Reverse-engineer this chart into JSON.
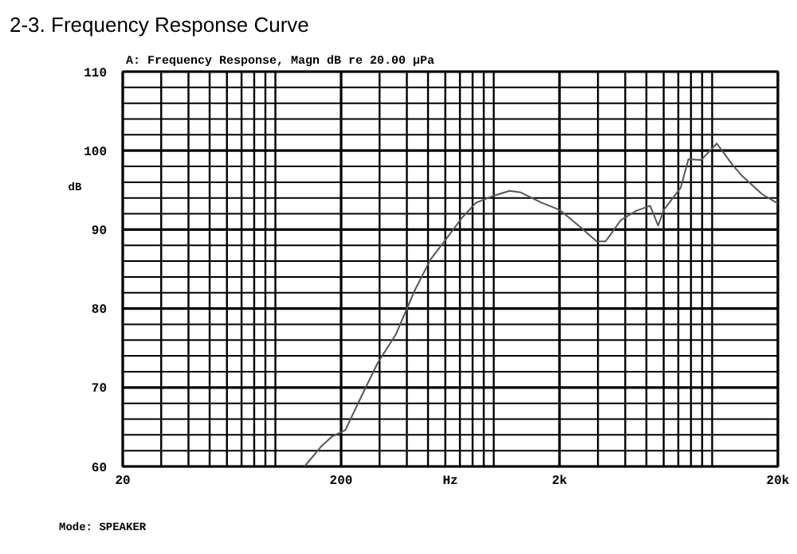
{
  "chart_data": {
    "type": "line",
    "title": "2-3. Frequency Response Curve",
    "subtitle": "A: Frequency Response, Magn dB re 20.00 µPa",
    "xlabel": "Hz",
    "ylabel": "dB",
    "annotations": [
      "Mode: SPEAKER"
    ],
    "log": "x",
    "grid": true,
    "xlim": [
      20,
      20000
    ],
    "ylim": [
      60,
      110
    ],
    "xticks": [
      20,
      {
        "value": 30,
        "label": null
      },
      {
        "value": 40,
        "label": null
      },
      {
        "value": 50,
        "label": null
      },
      {
        "value": 60,
        "label": null
      },
      {
        "value": 70,
        "label": null
      },
      {
        "value": 80,
        "label": null
      },
      {
        "value": 90,
        "label": null
      },
      {
        "value": 100,
        "label": null
      },
      200,
      {
        "value": 300,
        "label": null
      },
      {
        "value": 400,
        "label": null
      },
      {
        "value": 500,
        "label": null
      },
      {
        "value": 600,
        "label": null
      },
      {
        "value": 700,
        "label": null
      },
      {
        "value": 800,
        "label": null
      },
      {
        "value": 900,
        "label": null
      },
      {
        "value": 1000,
        "label": null
      },
      {
        "value": 2000,
        "label": "2k"
      },
      {
        "value": 3000,
        "label": null
      },
      {
        "value": 4000,
        "label": null
      },
      {
        "value": 5000,
        "label": null
      },
      {
        "value": 6000,
        "label": null
      },
      {
        "value": 7000,
        "label": null
      },
      {
        "value": 8000,
        "label": null
      },
      {
        "value": 9000,
        "label": null
      },
      {
        "value": 10000,
        "label": null
      },
      {
        "value": 20000,
        "label": "20k"
      }
    ],
    "yticks": [
      60,
      {
        "value": 62,
        "label": null
      },
      {
        "value": 64,
        "label": null
      },
      {
        "value": 66,
        "label": null
      },
      {
        "value": 68,
        "label": null
      },
      70,
      {
        "value": 72,
        "label": null
      },
      {
        "value": 74,
        "label": null
      },
      {
        "value": 76,
        "label": null
      },
      {
        "value": 78,
        "label": null
      },
      80,
      {
        "value": 82,
        "label": null
      },
      {
        "value": 84,
        "label": null
      },
      {
        "value": 86,
        "label": null
      },
      {
        "value": 88,
        "label": null
      },
      90,
      {
        "value": 92,
        "label": null
      },
      {
        "value": 94,
        "label": null
      },
      {
        "value": 96,
        "label": null
      },
      {
        "value": 98,
        "label": null
      },
      100,
      {
        "value": 102,
        "label": null
      },
      {
        "value": 104,
        "label": null
      },
      {
        "value": 106,
        "label": null
      },
      {
        "value": 108,
        "label": null
      },
      110
    ],
    "marker": "none",
    "line_style": "solid",
    "series": [
      {
        "color": "#555555",
        "x": [
          136,
          163,
          182,
          209,
          246,
          294,
          356,
          433,
          513,
          605,
          716,
          830,
          1004,
          1183,
          1331,
          1656,
          2000,
          2446,
          2960,
          3250,
          3820,
          4510,
          5200,
          5660,
          6010,
          7180,
          7790,
          8900,
          10500,
          12400,
          13600,
          16900,
          20000
        ],
        "values": [
          60,
          62.6,
          63.8,
          64.6,
          68.7,
          73.1,
          76.7,
          82.2,
          86.2,
          88.8,
          91.5,
          93.4,
          94.3,
          94.9,
          94.7,
          93.4,
          92.5,
          90.5,
          88.5,
          88.5,
          91.2,
          92.4,
          93,
          90.5,
          92.5,
          95.3,
          98.9,
          98.8,
          100.9,
          98.2,
          96.9,
          94.5,
          93.3
        ]
      }
    ]
  }
}
